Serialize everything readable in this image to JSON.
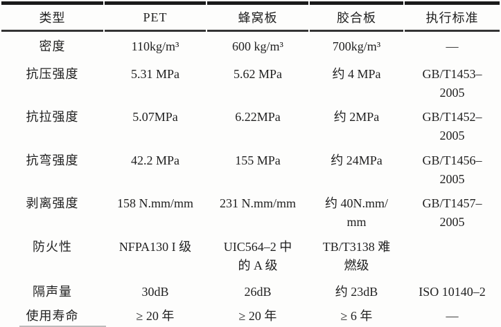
{
  "table": {
    "columns": [
      "类型",
      "PET",
      "蜂窝板",
      "胶合板",
      "执行标准"
    ],
    "rows": [
      {
        "label": "密度",
        "pet": "110kg/m³",
        "honeycomb": "600 kg/m³",
        "plywood": "700kg/m³",
        "standard": "—"
      },
      {
        "label": "抗压强度",
        "pet": "5.31 MPa",
        "honeycomb": "5.62 MPa",
        "plywood": "约 4 MPa",
        "standard": "GB/T1453–\n2005"
      },
      {
        "label": "抗拉强度",
        "pet": "5.07MPa",
        "honeycomb": "6.22MPa",
        "plywood": "约 2MPa",
        "standard": "GB/T1452–\n2005"
      },
      {
        "label": "抗弯强度",
        "pet": "42.2 MPa",
        "honeycomb": "155 MPa",
        "plywood": "约 24MPa",
        "standard": "GB/T1456–\n2005"
      },
      {
        "label": "剥离强度",
        "pet": "158 N.mm/mm",
        "honeycomb": "231 N.mm/mm",
        "plywood": "约 40N.mm/\nmm",
        "standard": "GB/T1457–\n2005"
      },
      {
        "label": "防火性",
        "pet": "NFPA130 I 级",
        "honeycomb": "UIC564–2 中\n的 A 级",
        "plywood": "TB/T3138 难\n燃级",
        "standard": ""
      },
      {
        "label": "隔声量",
        "pet": "30dB",
        "honeycomb": "26dB",
        "plywood": "约 23dB",
        "standard": "ISO 10140–2"
      },
      {
        "label": "使用寿命",
        "pet": "≥ 20 年",
        "honeycomb": "≥ 20 年",
        "plywood": "≥ 6 年",
        "standard": "—"
      }
    ]
  }
}
